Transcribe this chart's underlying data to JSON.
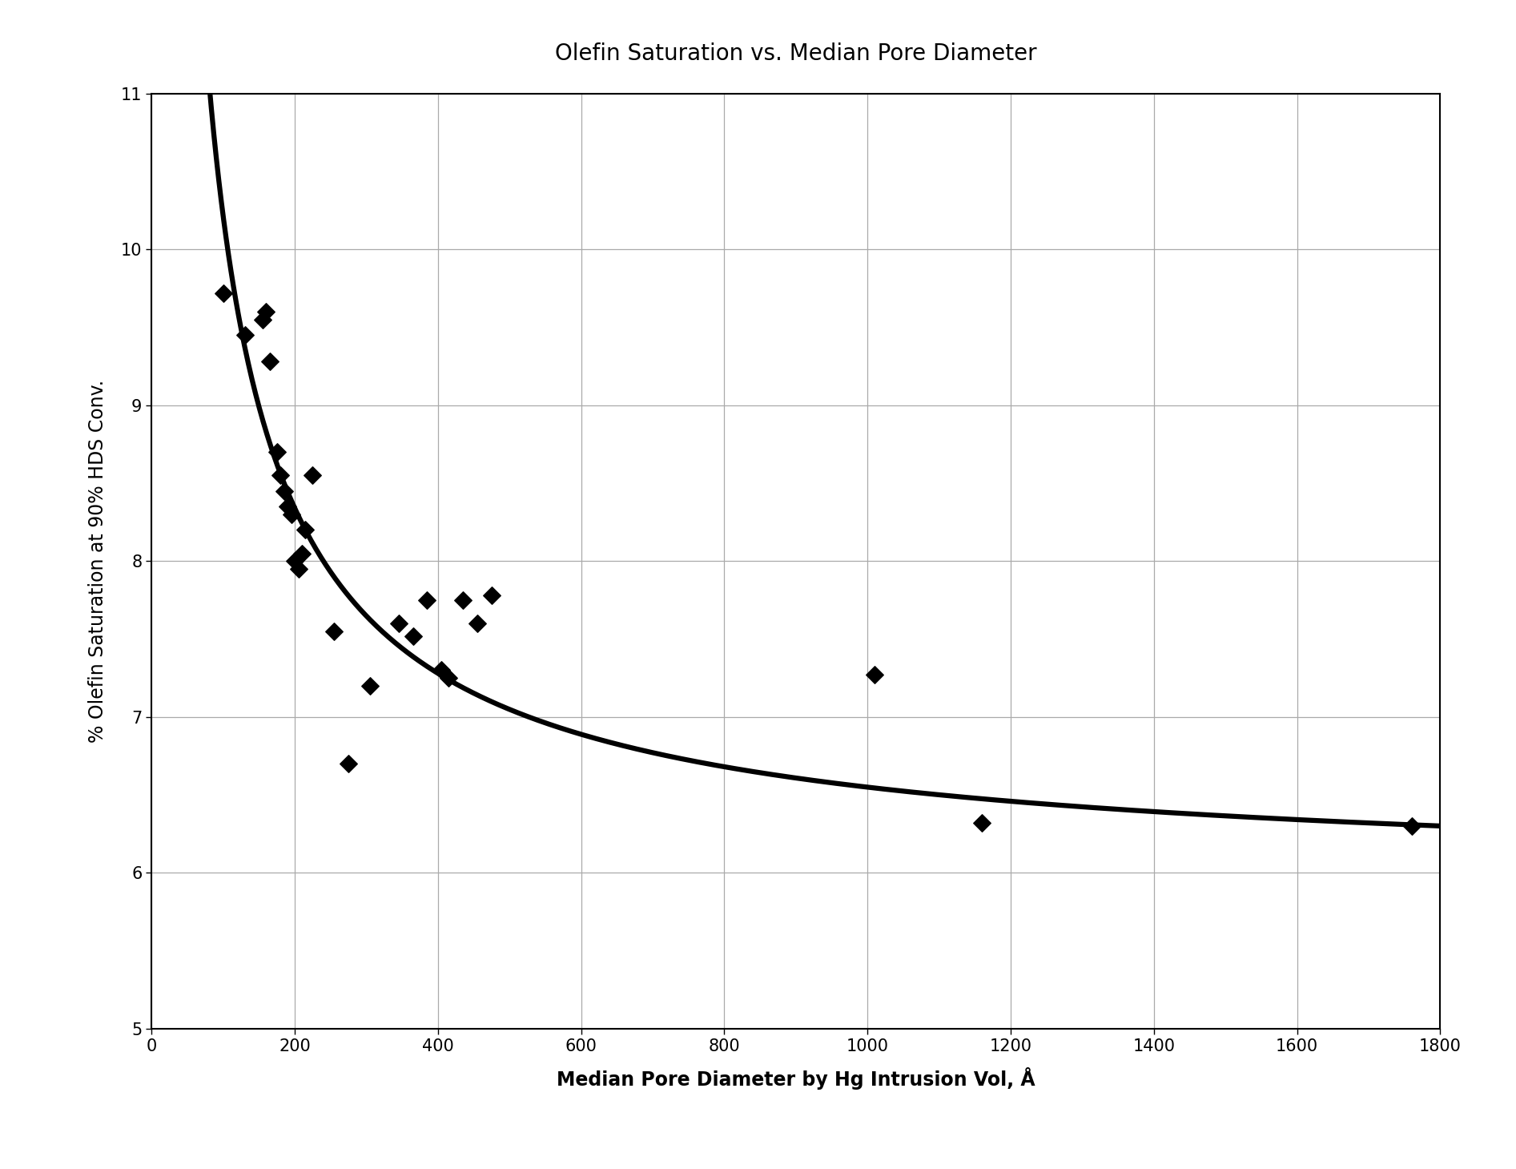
{
  "title": "Olefin Saturation vs. Median Pore Diameter",
  "xlabel": "Median Pore Diameter by Hg Intrusion Vol, Å",
  "ylabel": "% Olefin Saturation at 90% HDS Conv.",
  "xlim": [
    0,
    1800
  ],
  "ylim": [
    5,
    11
  ],
  "xticks": [
    0,
    200,
    400,
    600,
    800,
    1000,
    1200,
    1400,
    1600,
    1800
  ],
  "yticks": [
    5,
    6,
    7,
    8,
    9,
    10,
    11
  ],
  "scatter_x": [
    100,
    130,
    155,
    160,
    165,
    175,
    180,
    185,
    190,
    195,
    200,
    205,
    210,
    215,
    225,
    255,
    275,
    305,
    345,
    365,
    385,
    405,
    415,
    435,
    455,
    475,
    1010,
    1160,
    1760
  ],
  "scatter_y": [
    9.72,
    9.45,
    9.55,
    9.6,
    9.28,
    8.7,
    8.55,
    8.45,
    8.35,
    8.3,
    8.0,
    7.95,
    8.05,
    8.2,
    8.55,
    7.55,
    6.7,
    7.2,
    7.6,
    7.52,
    7.75,
    7.3,
    7.25,
    7.75,
    7.6,
    7.78,
    7.27,
    6.32,
    6.3
  ],
  "curve_A": 550.0,
  "curve_power": 0.62,
  "curve_c": 5.5,
  "marker_color": "#000000",
  "line_color": "#000000",
  "background_color": "#ffffff",
  "grid_color": "#aaaaaa",
  "title_fontsize": 20,
  "label_fontsize": 17,
  "tick_fontsize": 15,
  "figwidth": 18.93,
  "figheight": 14.59,
  "dpi": 100
}
